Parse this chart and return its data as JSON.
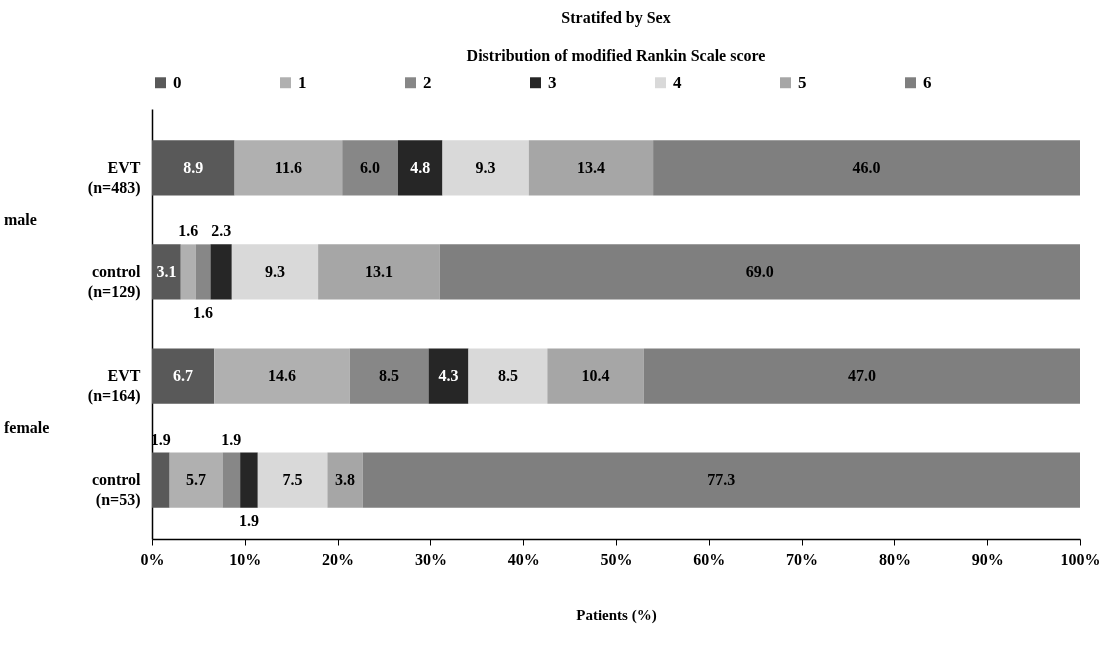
{
  "chart_data": {
    "type": "bar",
    "orientation": "horizontal",
    "stacked": true,
    "title": "Stratifed by Sex",
    "subtitle": "Distribution of modified Rankin Scale score",
    "xlabel": "Patients (%)",
    "categories": [
      "EVT\n(n=483)",
      "control\n(n=129)",
      "EVT\n(n=164)",
      "control\n(n=53)"
    ],
    "series": [
      {
        "name": "0",
        "color": "#595959",
        "values": [
          8.9,
          3.1,
          6.7,
          1.9
        ],
        "value_labels": [
          "8.9",
          "3.1",
          "6.7",
          "1.9"
        ]
      },
      {
        "name": "1",
        "color": "#b0b0b0",
        "values": [
          11.6,
          1.6,
          14.6,
          5.7
        ],
        "value_labels": [
          "11.6",
          "1.6",
          "14.6",
          "5.7"
        ]
      },
      {
        "name": "2",
        "color": "#878787",
        "values": [
          6.0,
          1.6,
          8.5,
          1.9
        ],
        "value_labels": [
          "6.0",
          "1.6",
          "8.5",
          "1.9"
        ]
      },
      {
        "name": "3",
        "color": "#262626",
        "values": [
          4.8,
          2.3,
          4.3,
          1.9
        ],
        "value_labels": [
          "4.8",
          "2.3",
          "4.3",
          "1.9"
        ]
      },
      {
        "name": "4",
        "color": "#d9d9d9",
        "values": [
          9.3,
          9.3,
          8.5,
          7.5
        ],
        "value_labels": [
          "9.3",
          "9.3",
          "8.5",
          "7.5"
        ]
      },
      {
        "name": "5",
        "color": "#a6a6a6",
        "values": [
          13.4,
          13.1,
          10.4,
          3.8
        ],
        "value_labels": [
          "13.4",
          "13.1",
          "10.4",
          "3.8"
        ]
      },
      {
        "name": "6",
        "color": "#7f7f7f",
        "values": [
          46.0,
          69.0,
          47.0,
          77.3
        ],
        "value_labels": [
          "46.0",
          "69.0",
          "47.0",
          "77.3"
        ]
      }
    ],
    "xlim": [
      0,
      100
    ],
    "xticks": [
      {
        "value": 0,
        "label": "0%"
      },
      {
        "value": 10,
        "label": "10%"
      },
      {
        "value": 20,
        "label": "20%"
      },
      {
        "value": 30,
        "label": "30%"
      },
      {
        "value": 40,
        "label": "40%"
      },
      {
        "value": 50,
        "label": "50%"
      },
      {
        "value": 60,
        "label": "60%"
      },
      {
        "value": 70,
        "label": "70%"
      },
      {
        "value": 80,
        "label": "80%"
      },
      {
        "value": 90,
        "label": "90%"
      },
      {
        "value": 100,
        "label": "100%"
      }
    ],
    "annotations": [
      "male",
      "female"
    ],
    "legend": "top",
    "grid": false
  }
}
